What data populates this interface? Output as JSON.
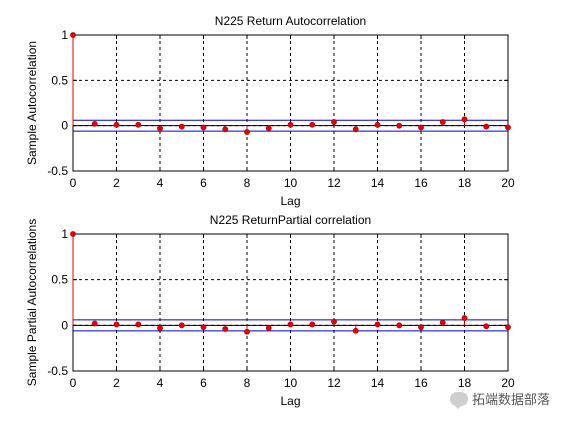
{
  "chart_data": [
    {
      "type": "stem",
      "title": "N225 Return Autocorrelation",
      "xlabel": "Lag",
      "ylabel": "Sample Autocorrelation",
      "xlim": [
        0,
        20
      ],
      "ylim": [
        -0.5,
        1
      ],
      "xticks": [
        0,
        2,
        4,
        6,
        8,
        10,
        12,
        14,
        16,
        18,
        20
      ],
      "yticks": [
        -0.5,
        0,
        0.5,
        1
      ],
      "ytick_labels": [
        "-0.5",
        "0",
        "0.5",
        "1"
      ],
      "grid": true,
      "bounds": [
        0.06,
        -0.06
      ],
      "x": [
        0,
        1,
        2,
        3,
        4,
        5,
        6,
        7,
        8,
        9,
        10,
        11,
        12,
        13,
        14,
        15,
        16,
        17,
        18,
        19,
        20
      ],
      "values": [
        1,
        0.02,
        0.01,
        0.01,
        -0.03,
        -0.01,
        -0.02,
        -0.04,
        -0.07,
        -0.03,
        0.01,
        0.01,
        0.04,
        -0.04,
        0.01,
        0.0,
        -0.02,
        0.04,
        0.07,
        -0.01,
        -0.02
      ],
      "colors": {
        "marker": "#ee0000",
        "bound": "#0000cc",
        "zero": "#000000"
      }
    },
    {
      "type": "stem",
      "title": "N225 ReturnPartial correlation",
      "xlabel": "Lag",
      "ylabel": "Sample Partial Autocorrelations",
      "xlim": [
        0,
        20
      ],
      "ylim": [
        -0.5,
        1
      ],
      "xticks": [
        0,
        2,
        4,
        6,
        8,
        10,
        12,
        14,
        16,
        18,
        20
      ],
      "yticks": [
        -0.5,
        0,
        0.5,
        1
      ],
      "ytick_labels": [
        "-0.5",
        "0",
        "0.5",
        "1"
      ],
      "grid": true,
      "bounds": [
        0.06,
        -0.06
      ],
      "x": [
        0,
        1,
        2,
        3,
        4,
        5,
        6,
        7,
        8,
        9,
        10,
        11,
        12,
        13,
        14,
        15,
        16,
        17,
        18,
        19,
        20
      ],
      "values": [
        1,
        0.02,
        0.01,
        0.01,
        -0.03,
        0.0,
        -0.02,
        -0.04,
        -0.07,
        -0.03,
        0.01,
        0.01,
        0.04,
        -0.06,
        0.01,
        0.0,
        -0.02,
        0.03,
        0.08,
        -0.01,
        -0.02
      ],
      "colors": {
        "marker": "#ee0000",
        "bound": "#0000cc",
        "zero": "#000000"
      }
    }
  ],
  "watermark": {
    "text": "拓端数据部落"
  }
}
